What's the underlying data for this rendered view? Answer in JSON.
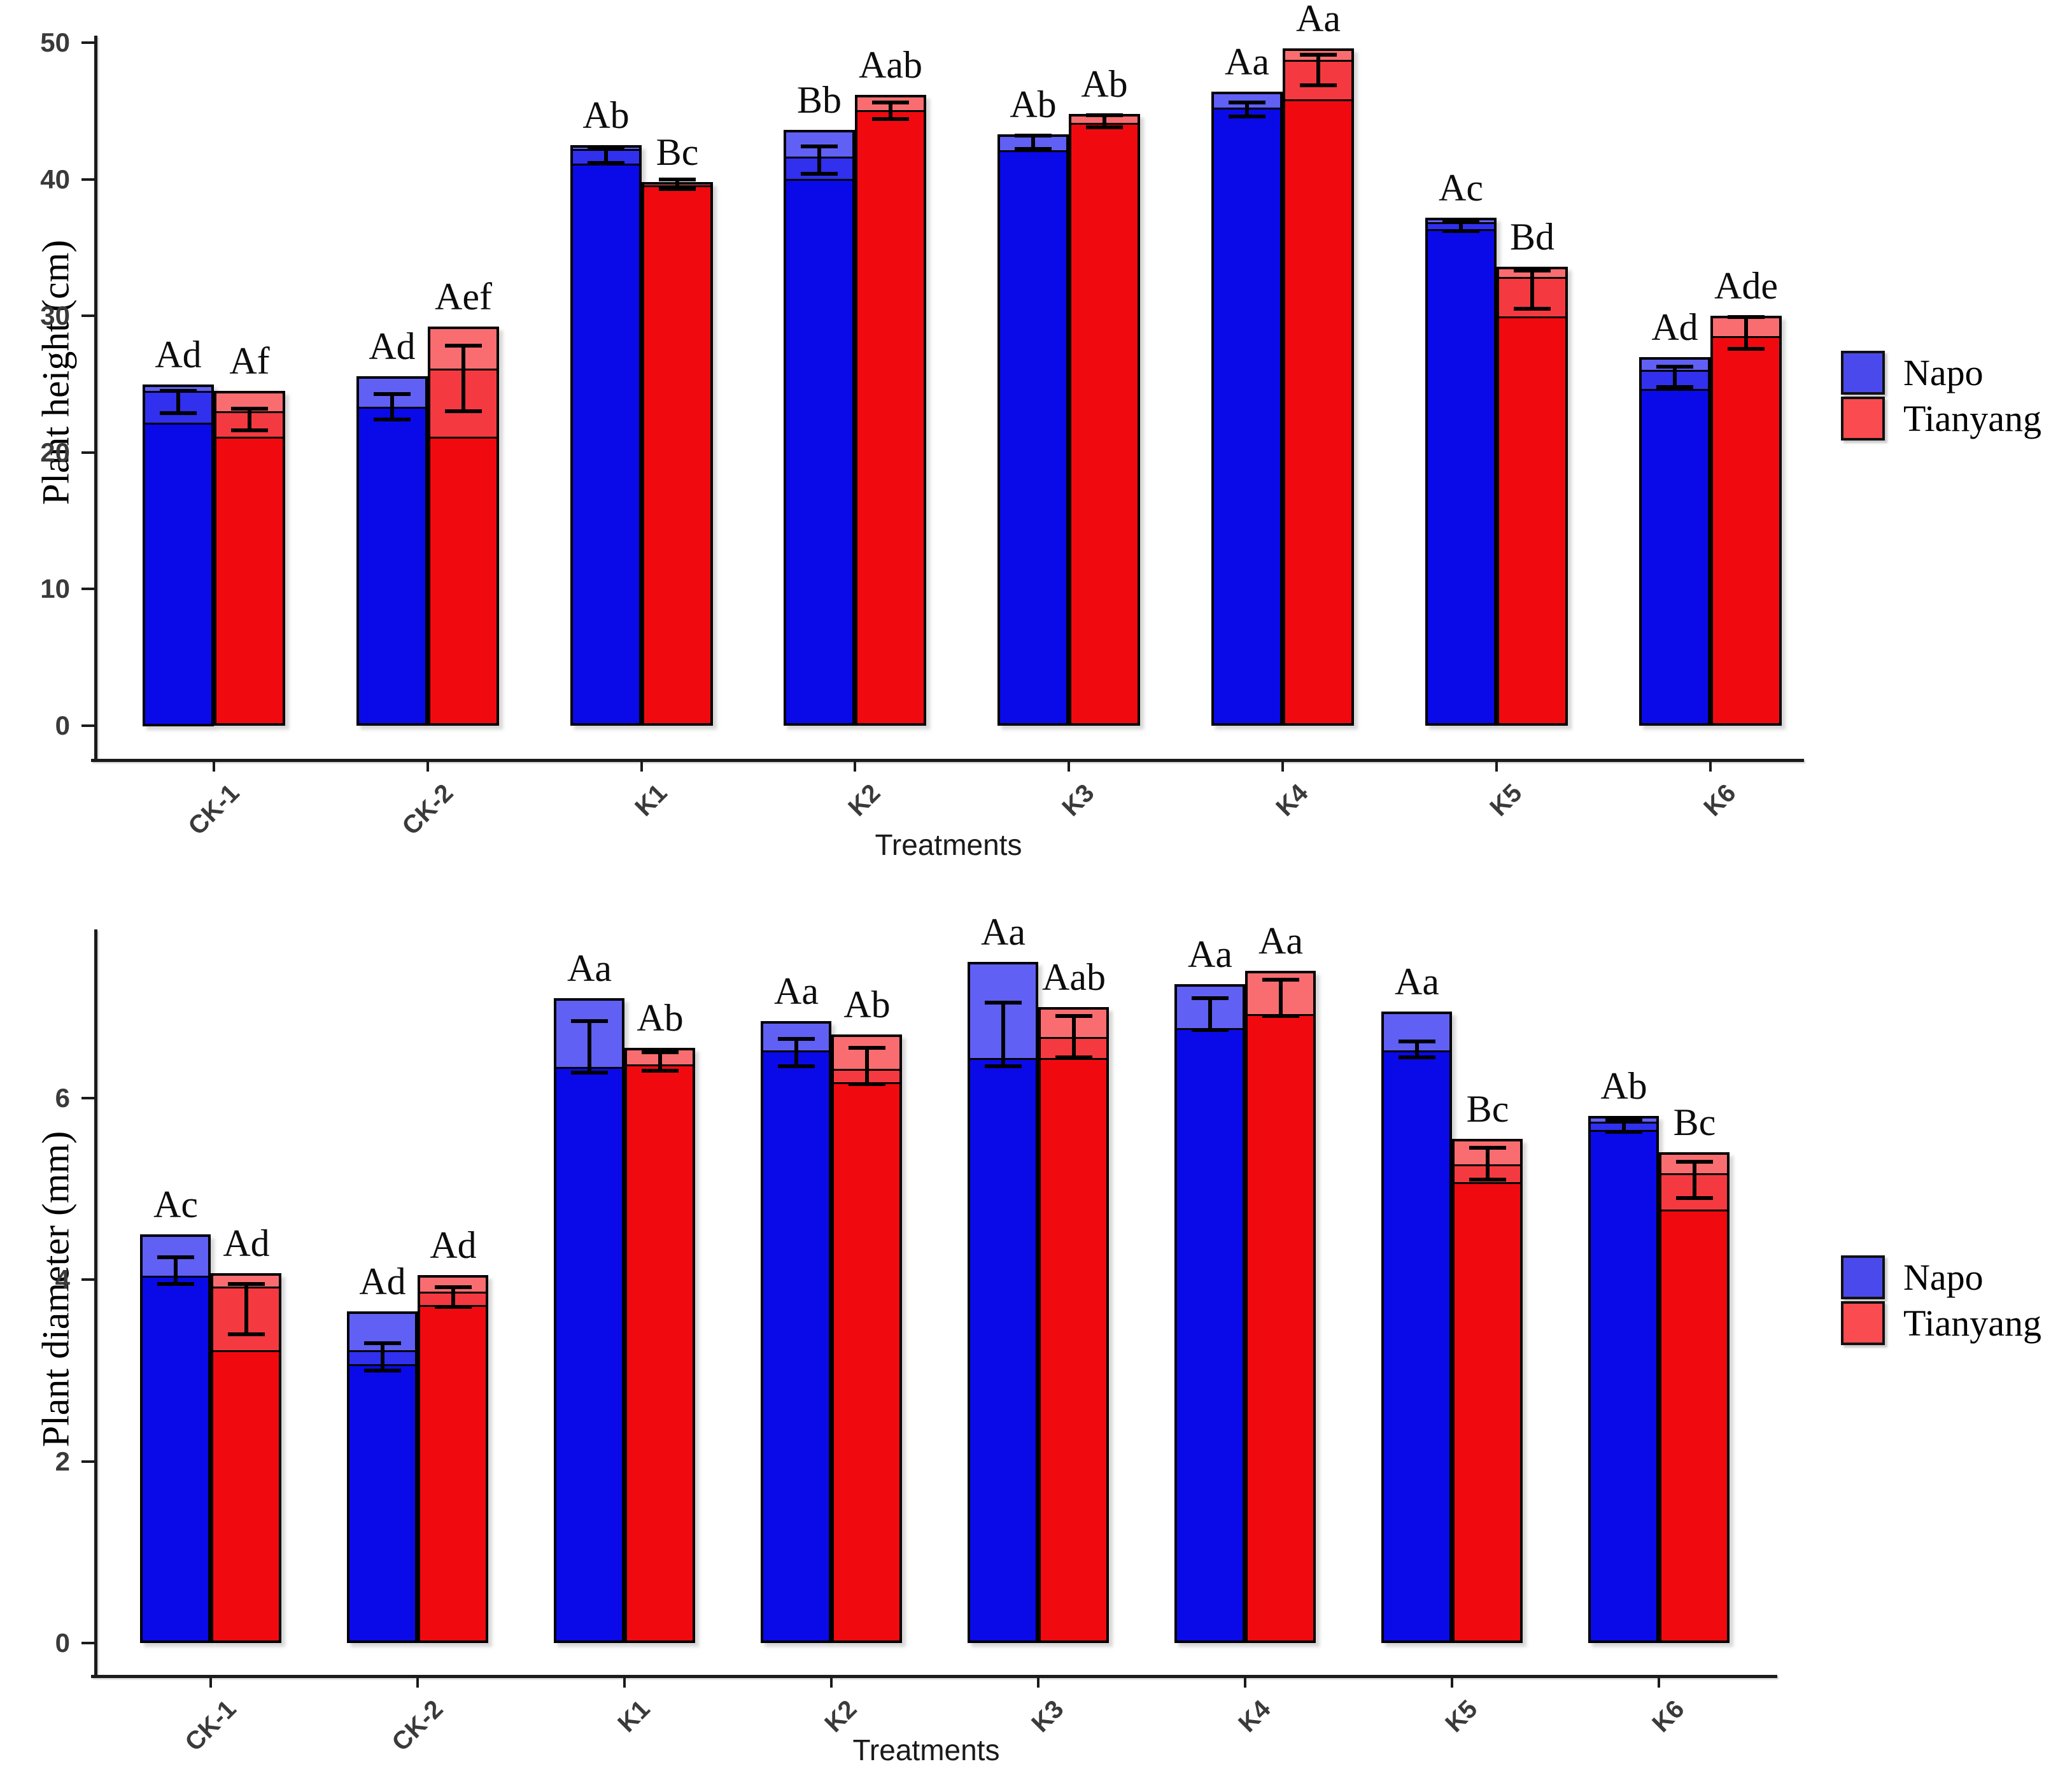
{
  "chart_data": [
    {
      "type": "bar",
      "title": "",
      "xlabel": "Treatments",
      "ylabel": "Plant height (cm)",
      "categories": [
        "CK-1",
        "CK-2",
        "K1",
        "K2",
        "K3",
        "K4",
        "K5",
        "K6"
      ],
      "yticks": [
        0,
        10,
        20,
        30,
        40,
        50
      ],
      "ylim": [
        0,
        52.5
      ],
      "grid": false,
      "legend_position": "right",
      "series": [
        {
          "name": "Napo",
          "colors": {
            "main": "#0a0ae8",
            "mid": "#3030ee",
            "light": "#6060f4",
            "legend": "#4a4aec"
          },
          "values": [
            25.0,
            25.6,
            42.5,
            43.6,
            43.3,
            46.4,
            37.2,
            27.0
          ],
          "bars": [
            {
              "top": 25.0,
              "steps": [
                24.4,
                22.1
              ],
              "err": [
                22.9,
                24.5
              ],
              "sig": "Ad"
            },
            {
              "top": 25.6,
              "steps": [
                23.2
              ],
              "err": [
                22.4,
                24.3
              ],
              "sig": "Ad"
            },
            {
              "top": 42.5,
              "steps": [
                42.1,
                41.0
              ],
              "err": [
                41.2,
                42.3
              ],
              "sig": "Ab"
            },
            {
              "top": 43.6,
              "steps": [
                41.5,
                39.9
              ],
              "err": [
                40.4,
                42.4
              ],
              "sig": "Bb"
            },
            {
              "top": 43.3,
              "steps": [
                42.0
              ],
              "err": [
                42.2,
                43.2
              ],
              "sig": "Ab"
            },
            {
              "top": 46.4,
              "steps": [
                45.1
              ],
              "err": [
                44.6,
                45.6
              ],
              "sig": "Aa"
            },
            {
              "top": 37.2,
              "steps": [
                36.7,
                36.2
              ],
              "err": [
                36.2,
                36.9
              ],
              "sig": "Ac"
            },
            {
              "top": 27.0,
              "steps": [
                25.9,
                24.5
              ],
              "err": [
                24.8,
                26.3
              ],
              "sig": "Ad"
            }
          ]
        },
        {
          "name": "Tianyang",
          "colors": {
            "main": "#f00a10",
            "mid": "#f43a40",
            "light": "#f96d70",
            "legend": "#f94b50"
          },
          "values": [
            24.5,
            29.2,
            39.8,
            46.2,
            44.8,
            49.6,
            33.6,
            30.0
          ],
          "bars": [
            {
              "top": 24.5,
              "steps": [
                22.9,
                21.0
              ],
              "err": [
                21.6,
                23.2
              ],
              "sig": "Af"
            },
            {
              "top": 29.2,
              "steps": [
                26.0,
                21.0
              ],
              "err": [
                23.0,
                27.8
              ],
              "sig": "Aef"
            },
            {
              "top": 39.8,
              "steps": [
                39.4
              ],
              "err": [
                39.3,
                40.0
              ],
              "sig": "Bc"
            },
            {
              "top": 46.2,
              "steps": [
                44.9
              ],
              "err": [
                44.4,
                45.6
              ],
              "sig": "Aab"
            },
            {
              "top": 44.8,
              "steps": [
                44.0
              ],
              "err": [
                43.8,
                44.7
              ],
              "sig": "Ab"
            },
            {
              "top": 49.6,
              "steps": [
                48.6,
                45.7
              ],
              "err": [
                46.9,
                49.1
              ],
              "sig": "Aa"
            },
            {
              "top": 33.6,
              "steps": [
                32.7,
                29.8
              ],
              "err": [
                30.5,
                33.3
              ],
              "sig": "Bd"
            },
            {
              "top": 30.0,
              "steps": [
                28.4
              ],
              "err": [
                27.6,
                29.9
              ],
              "sig": "Ade"
            }
          ]
        }
      ]
    },
    {
      "type": "bar",
      "title": "",
      "xlabel": "Treatments",
      "ylabel": "Plant diameter (mm)",
      "categories": [
        "CK-1",
        "CK-2",
        "K1",
        "K2",
        "K3",
        "K4",
        "K5",
        "K6"
      ],
      "yticks": [
        0,
        2,
        4,
        6
      ],
      "ylim": [
        0,
        7.8
      ],
      "grid": false,
      "legend_position": "right",
      "series": [
        {
          "name": "Napo",
          "colors": {
            "main": "#0a0ae8",
            "mid": "#3030ee",
            "light": "#6060f4",
            "legend": "#4a4aec"
          },
          "values": [
            4.5,
            3.65,
            7.1,
            6.85,
            7.5,
            7.25,
            6.95,
            5.8
          ],
          "bars": [
            {
              "top": 4.5,
              "steps": [
                4.02
              ],
              "err": [
                3.95,
                4.25
              ],
              "sig": "Ac"
            },
            {
              "top": 3.65,
              "steps": [
                3.2,
                3.05
              ],
              "err": [
                3.0,
                3.3
              ],
              "sig": "Ad"
            },
            {
              "top": 7.1,
              "steps": [
                6.32
              ],
              "err": [
                6.28,
                6.85
              ],
              "sig": "Aa"
            },
            {
              "top": 6.85,
              "steps": [
                6.5
              ],
              "err": [
                6.35,
                6.65
              ],
              "sig": "Aa"
            },
            {
              "top": 7.5,
              "steps": [
                6.42
              ],
              "err": [
                6.35,
                7.05
              ],
              "sig": "Aa"
            },
            {
              "top": 7.25,
              "steps": [
                6.75
              ],
              "err": [
                6.75,
                7.1
              ],
              "sig": "Aa"
            },
            {
              "top": 6.95,
              "steps": [
                6.5
              ],
              "err": [
                6.45,
                6.62
              ],
              "sig": "Aa"
            },
            {
              "top": 5.8,
              "steps": [
                5.72,
                5.63
              ],
              "err": [
                5.63,
                5.76
              ],
              "sig": "Ab"
            }
          ]
        },
        {
          "name": "Tianyang",
          "colors": {
            "main": "#f00a10",
            "mid": "#f43a40",
            "light": "#f96d70",
            "legend": "#f94b50"
          },
          "values": [
            4.07,
            4.05,
            6.55,
            6.7,
            7.0,
            7.4,
            5.55,
            5.4
          ],
          "bars": [
            {
              "top": 4.07,
              "steps": [
                3.9,
                3.2
              ],
              "err": [
                3.4,
                3.95
              ],
              "sig": "Ad"
            },
            {
              "top": 4.05,
              "steps": [
                3.85,
                3.7
              ],
              "err": [
                3.7,
                3.92
              ],
              "sig": "Ad"
            },
            {
              "top": 6.55,
              "steps": [
                6.35
              ],
              "err": [
                6.3,
                6.5
              ],
              "sig": "Ab"
            },
            {
              "top": 6.7,
              "steps": [
                6.3,
                6.15
              ],
              "err": [
                6.15,
                6.55
              ],
              "sig": "Ab"
            },
            {
              "top": 7.0,
              "steps": [
                6.65,
                6.42
              ],
              "err": [
                6.45,
                6.9
              ],
              "sig": "Aab"
            },
            {
              "top": 7.4,
              "steps": [
                6.9
              ],
              "err": [
                6.9,
                7.3
              ],
              "sig": "Aa"
            },
            {
              "top": 5.55,
              "steps": [
                5.25,
                5.05
              ],
              "err": [
                5.1,
                5.45
              ],
              "sig": "Bc"
            },
            {
              "top": 5.4,
              "steps": [
                5.15,
                4.75
              ],
              "err": [
                4.9,
                5.3
              ],
              "sig": "Bc"
            }
          ]
        }
      ]
    }
  ]
}
